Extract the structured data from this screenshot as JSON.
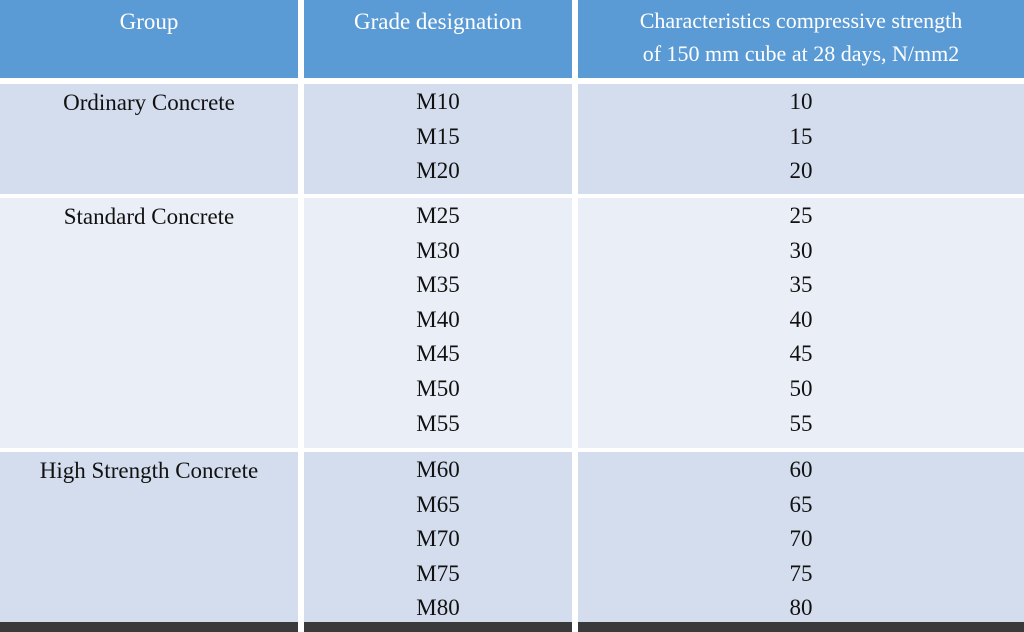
{
  "headers": {
    "group": "Group",
    "grade": "Grade designation",
    "strength_line1": "Characteristics compressive strength",
    "strength_line2": "of 150 mm cube at 28 days, N/mm2"
  },
  "groups": [
    {
      "name": "Ordinary Concrete",
      "rows": [
        {
          "grade": "M10",
          "strength": "10"
        },
        {
          "grade": "M15",
          "strength": "15"
        },
        {
          "grade": "M20",
          "strength": "20"
        }
      ]
    },
    {
      "name": "Standard Concrete",
      "rows": [
        {
          "grade": "M25",
          "strength": "25"
        },
        {
          "grade": "M30",
          "strength": "30"
        },
        {
          "grade": "M35",
          "strength": "35"
        },
        {
          "grade": "M40",
          "strength": "40"
        },
        {
          "grade": "M45",
          "strength": "45"
        },
        {
          "grade": "M50",
          "strength": "50"
        },
        {
          "grade": "M55",
          "strength": "55"
        }
      ]
    },
    {
      "name": "High Strength Concrete",
      "rows": [
        {
          "grade": "M60",
          "strength": "60"
        },
        {
          "grade": "M65",
          "strength": "65"
        },
        {
          "grade": "M70",
          "strength": "70"
        },
        {
          "grade": "M75",
          "strength": "75"
        },
        {
          "grade": "M80",
          "strength": "80"
        }
      ]
    }
  ],
  "colors": {
    "header": "#5b9bd5",
    "band_dark": "#d3dded",
    "band_light": "#eaeff7"
  }
}
